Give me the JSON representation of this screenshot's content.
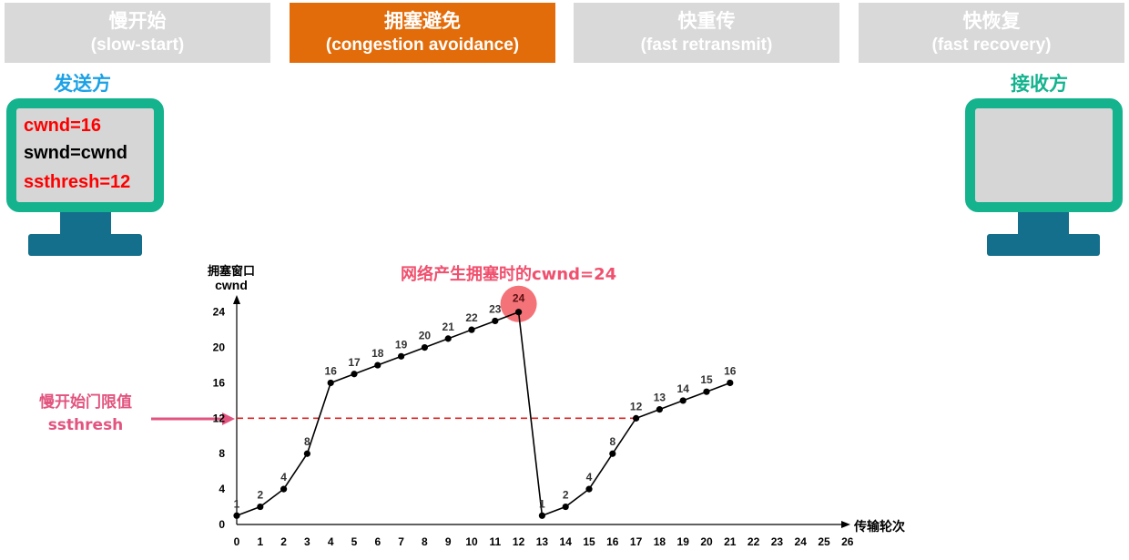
{
  "colors": {
    "accent": "#e36c0a",
    "inactive_tab": "#d9d9d9",
    "monitor_frame": "#14b38e",
    "monitor_stand": "#136f8c",
    "sender_label": "#1aa1e6",
    "receiver_label": "#14b38e",
    "highlight": "#ff0000",
    "annotation": "#e2547f"
  },
  "tabs": [
    {
      "title": "慢开始",
      "subtitle": "(slow-start)",
      "active": false
    },
    {
      "title": "拥塞避免",
      "subtitle": "(congestion avoidance)",
      "active": true
    },
    {
      "title": "快重传",
      "subtitle": "(fast retransmit)",
      "active": false
    },
    {
      "title": "快恢复",
      "subtitle": "(fast recovery)",
      "active": false
    }
  ],
  "sender": {
    "label": "发送方",
    "lines": [
      "cwnd=16",
      "swnd=cwnd",
      "ssthresh=12"
    ]
  },
  "receiver": {
    "label": "接收方"
  },
  "annotations": {
    "congestion_note": "网络产生拥塞时的cwnd=24",
    "threshold_label_line1": "慢开始门限值",
    "threshold_label_line2": "ssthresh"
  },
  "chart_data": {
    "type": "line",
    "ylabel_line1": "拥塞窗口",
    "ylabel_line2": "cwnd",
    "xlabel": "传输轮次",
    "x_ticks": [
      0,
      1,
      2,
      3,
      4,
      5,
      6,
      7,
      8,
      9,
      10,
      11,
      12,
      13,
      14,
      15,
      16,
      17,
      18,
      19,
      20,
      21,
      22,
      23,
      24,
      25,
      26
    ],
    "y_ticks": [
      0,
      4,
      8,
      12,
      16,
      20,
      24
    ],
    "xlim": [
      0,
      26
    ],
    "ylim": [
      0,
      24
    ],
    "threshold": 12,
    "threshold_style": "dashed",
    "series": [
      {
        "points": [
          {
            "x": 0,
            "y": 1,
            "label": "1"
          },
          {
            "x": 1,
            "y": 2,
            "label": "2"
          },
          {
            "x": 2,
            "y": 4,
            "label": "4"
          },
          {
            "x": 3,
            "y": 8,
            "label": "8"
          },
          {
            "x": 4,
            "y": 16,
            "label": "16"
          },
          {
            "x": 5,
            "y": 17,
            "label": "17"
          },
          {
            "x": 6,
            "y": 18,
            "label": "18"
          },
          {
            "x": 7,
            "y": 19,
            "label": "19"
          },
          {
            "x": 8,
            "y": 20,
            "label": "20"
          },
          {
            "x": 9,
            "y": 21,
            "label": "21"
          },
          {
            "x": 10,
            "y": 22,
            "label": "22"
          },
          {
            "x": 11,
            "y": 23,
            "label": "23"
          },
          {
            "x": 12,
            "y": 24,
            "label": "24"
          },
          {
            "x": 13,
            "y": 1,
            "label": "1"
          },
          {
            "x": 14,
            "y": 2,
            "label": "2"
          },
          {
            "x": 15,
            "y": 4,
            "label": "4"
          },
          {
            "x": 16,
            "y": 8,
            "label": "8"
          },
          {
            "x": 17,
            "y": 12,
            "label": "12"
          },
          {
            "x": 18,
            "y": 13,
            "label": "13"
          },
          {
            "x": 19,
            "y": 14,
            "label": "14"
          },
          {
            "x": 20,
            "y": 15,
            "label": "15"
          },
          {
            "x": 21,
            "y": 16,
            "label": "16"
          }
        ]
      }
    ],
    "highlight_x": 12
  }
}
